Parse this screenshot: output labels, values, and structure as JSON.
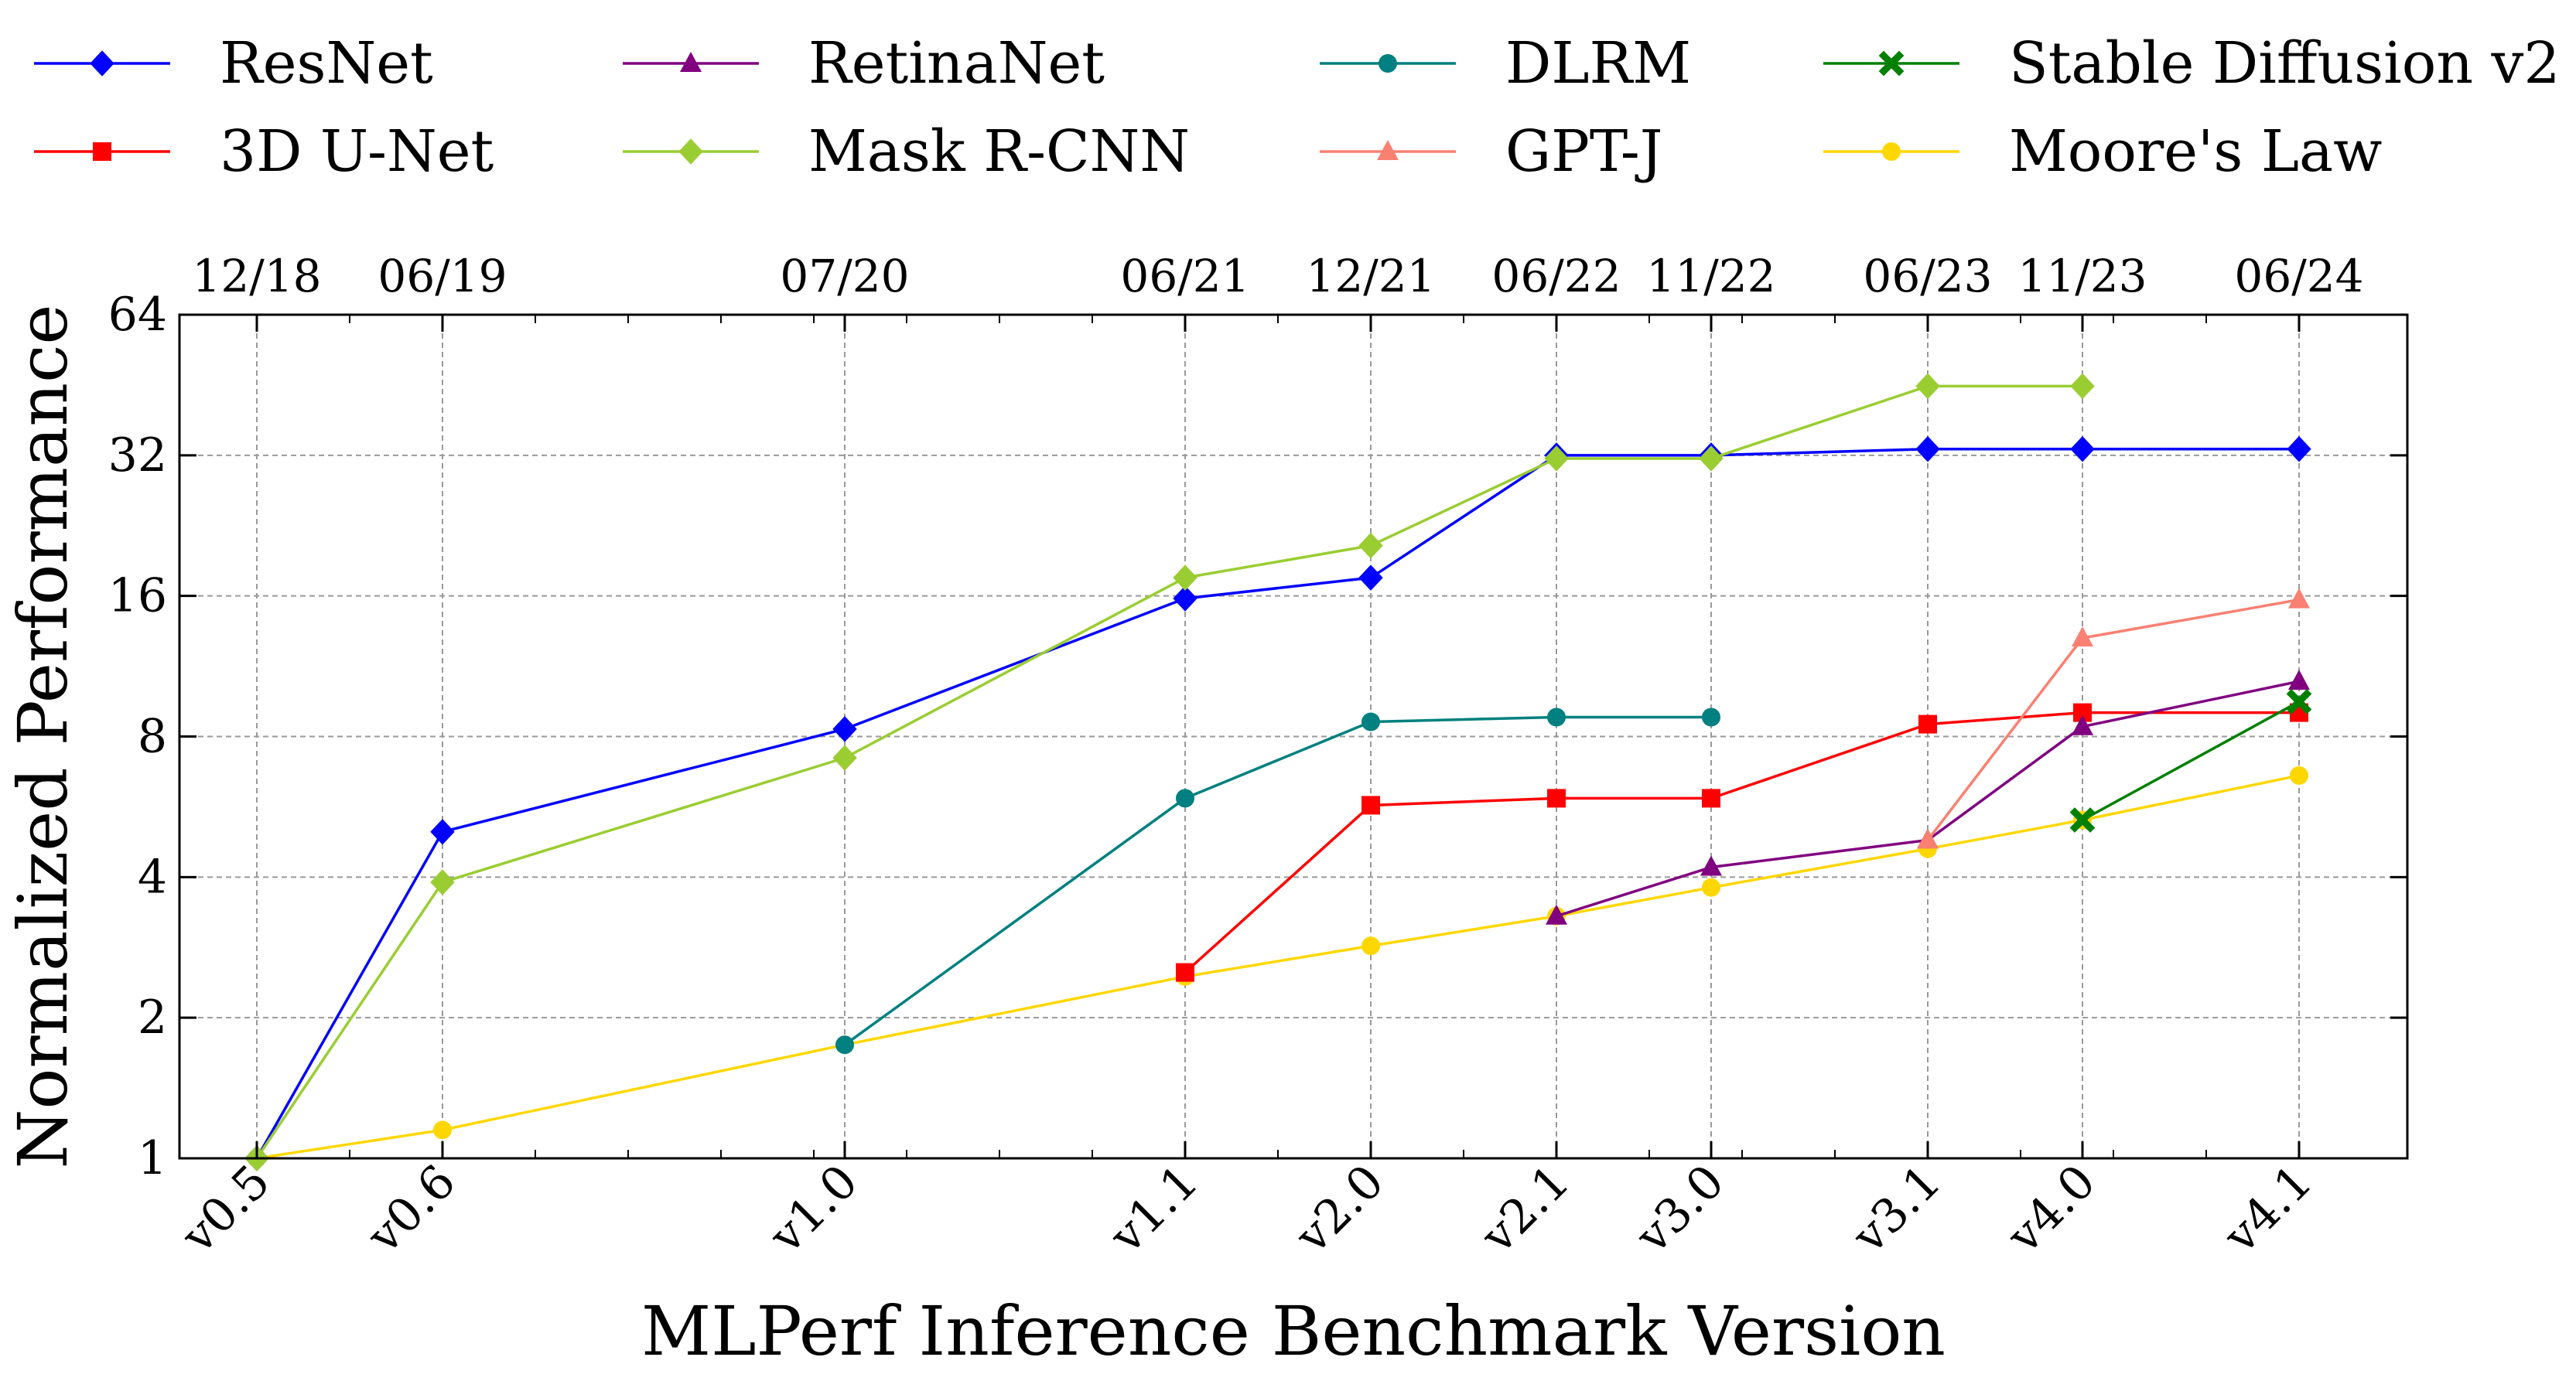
{
  "chart_data": {
    "type": "line",
    "title": "",
    "xlabel": "MLPerf Inference Benchmark Version",
    "ylabel": "Normalized Performance",
    "y_scale": "log2",
    "ylim": [
      1,
      64
    ],
    "yticks": [
      1,
      2,
      4,
      8,
      16,
      32,
      64
    ],
    "ytick_labels": [
      "1",
      "2",
      "4",
      "8",
      "16",
      "32",
      "64"
    ],
    "x_months": [
      0,
      6,
      19,
      30,
      36,
      42,
      47,
      54,
      59,
      66
    ],
    "xtick_labels": [
      "v0.5",
      "v0.6",
      "v1.0",
      "v1.1",
      "v2.0",
      "v2.1",
      "v3.0",
      "v3.1",
      "v4.0",
      "v4.1"
    ],
    "top_tick_labels": [
      "12/18",
      "06/19",
      "07/20",
      "06/21",
      "12/21",
      "06/22",
      "11/22",
      "06/23",
      "11/23",
      "06/24"
    ],
    "grid": true,
    "legend_position": "top",
    "series": [
      {
        "name": "ResNet",
        "color": "#0000ff",
        "marker": "diamond",
        "values": [
          1.0,
          5.0,
          8.3,
          15.8,
          17.5,
          32.0,
          32.0,
          33.0,
          33.0,
          33.0
        ]
      },
      {
        "name": "3D U-Net",
        "color": "#ff0000",
        "marker": "square",
        "values": [
          null,
          null,
          null,
          2.5,
          5.7,
          5.9,
          5.9,
          8.5,
          9.0,
          9.0
        ]
      },
      {
        "name": "RetinaNet",
        "color": "#800080",
        "marker": "triangle",
        "values": [
          null,
          null,
          null,
          null,
          null,
          3.3,
          4.2,
          4.8,
          8.4,
          10.5
        ]
      },
      {
        "name": "Mask R-CNN",
        "color": "#9acd32",
        "marker": "diamond",
        "values": [
          1.0,
          3.9,
          7.2,
          17.5,
          20.5,
          31.5,
          31.5,
          45.0,
          45.0,
          null
        ]
      },
      {
        "name": "DLRM",
        "color": "#008080",
        "marker": "circle",
        "values": [
          null,
          null,
          1.75,
          5.9,
          8.6,
          8.8,
          8.8,
          null,
          null,
          null
        ]
      },
      {
        "name": "GPT-J",
        "color": "#fa8072",
        "marker": "triangle",
        "values": [
          null,
          null,
          null,
          null,
          null,
          null,
          null,
          4.8,
          13.0,
          15.7
        ]
      },
      {
        "name": "Stable Diffusion v2",
        "color": "#008000",
        "marker": "x",
        "values": [
          null,
          null,
          null,
          null,
          null,
          null,
          null,
          null,
          5.3,
          9.5
        ]
      },
      {
        "name": "Moore's Law",
        "color": "#ffd700",
        "marker": "circle",
        "values": [
          1.0,
          1.15,
          1.75,
          2.45,
          2.85,
          3.3,
          3.8,
          4.6,
          5.3,
          6.6
        ]
      }
    ]
  }
}
